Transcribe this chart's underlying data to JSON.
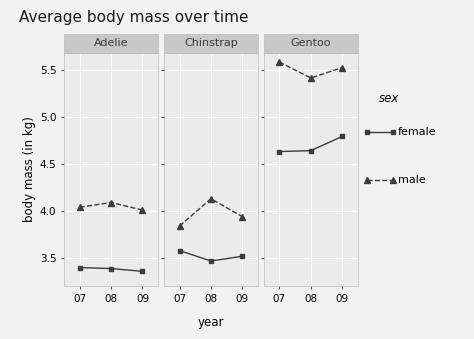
{
  "title": "Average body mass over time",
  "xlabel": "year",
  "ylabel": "body mass (in kg)",
  "facets": [
    "Adelie",
    "Chinstrap",
    "Gentoo"
  ],
  "years": [
    "07",
    "08",
    "09"
  ],
  "year_vals": [
    7,
    8,
    9
  ],
  "female": {
    "Adelie": [
      3.4,
      3.39,
      3.36
    ],
    "Chinstrap": [
      3.58,
      3.47,
      3.52
    ],
    "Gentoo": [
      4.63,
      4.64,
      4.79
    ]
  },
  "male": {
    "Adelie": [
      4.04,
      4.09,
      4.01
    ],
    "Chinstrap": [
      3.84,
      4.13,
      3.94
    ],
    "Gentoo": [
      5.58,
      5.41,
      5.52
    ]
  },
  "ylim": [
    3.2,
    5.68
  ],
  "yticks": [
    3.5,
    4.0,
    4.5,
    5.0,
    5.5
  ],
  "fig_bg": "#F2F2F2",
  "panel_bg": "#EBEBEB",
  "grid_color": "#FFFFFF",
  "line_color": "#3C3C3C",
  "facet_header_bg": "#C8C8C8",
  "facet_header_color": "#3C3C3C",
  "female_marker": "s",
  "male_marker": "^",
  "female_linestyle": "-",
  "male_linestyle": "--",
  "title_fontsize": 11,
  "axis_label_fontsize": 8.5,
  "tick_fontsize": 7.5,
  "facet_fontsize": 8,
  "legend_title_fontsize": 8.5,
  "legend_fontsize": 8
}
